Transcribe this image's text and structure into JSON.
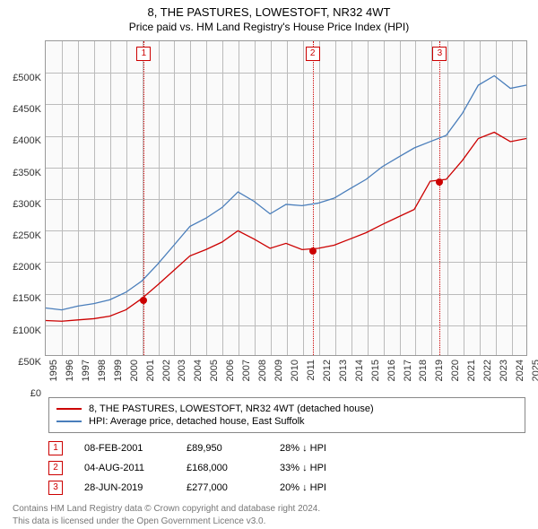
{
  "title": "8, THE PASTURES, LOWESTOFT, NR32 4WT",
  "subtitle": "Price paid vs. HM Land Registry's House Price Index (HPI)",
  "chart": {
    "type": "line",
    "background_color": "#fafafa",
    "grid_color": "#bbbbbb",
    "border_color": "#999999",
    "x_years": [
      1995,
      1996,
      1997,
      1998,
      1999,
      2000,
      2001,
      2002,
      2003,
      2004,
      2005,
      2006,
      2007,
      2008,
      2009,
      2010,
      2011,
      2012,
      2013,
      2014,
      2015,
      2016,
      2017,
      2018,
      2019,
      2020,
      2021,
      2022,
      2023,
      2024,
      2025
    ],
    "y_ticks": [
      0,
      50000,
      100000,
      150000,
      200000,
      250000,
      300000,
      350000,
      400000,
      450000,
      500000
    ],
    "y_tick_labels": [
      "£0",
      "£50K",
      "£100K",
      "£150K",
      "£200K",
      "£250K",
      "£300K",
      "£350K",
      "£400K",
      "£450K",
      "£500K"
    ],
    "ylim": [
      0,
      500000
    ],
    "series": [
      {
        "name": "hpi",
        "color": "#4a7ebb",
        "width": 1.3,
        "data": [
          [
            1995,
            75000
          ],
          [
            1996,
            72000
          ],
          [
            1997,
            78000
          ],
          [
            1998,
            82000
          ],
          [
            1999,
            88000
          ],
          [
            2000,
            100000
          ],
          [
            2001,
            118000
          ],
          [
            2002,
            145000
          ],
          [
            2003,
            175000
          ],
          [
            2004,
            205000
          ],
          [
            2005,
            218000
          ],
          [
            2006,
            235000
          ],
          [
            2007,
            260000
          ],
          [
            2008,
            245000
          ],
          [
            2009,
            225000
          ],
          [
            2010,
            240000
          ],
          [
            2011,
            238000
          ],
          [
            2012,
            242000
          ],
          [
            2013,
            250000
          ],
          [
            2014,
            265000
          ],
          [
            2015,
            280000
          ],
          [
            2016,
            300000
          ],
          [
            2017,
            315000
          ],
          [
            2018,
            330000
          ],
          [
            2019,
            340000
          ],
          [
            2020,
            350000
          ],
          [
            2021,
            385000
          ],
          [
            2022,
            430000
          ],
          [
            2023,
            445000
          ],
          [
            2024,
            425000
          ],
          [
            2025,
            430000
          ]
        ],
        "legend_label": "HPI: Average price, detached house, East Suffolk"
      },
      {
        "name": "property",
        "color": "#cc0000",
        "width": 1.3,
        "data": [
          [
            1995,
            55000
          ],
          [
            1996,
            54000
          ],
          [
            1997,
            56000
          ],
          [
            1998,
            58000
          ],
          [
            1999,
            62000
          ],
          [
            2000,
            72000
          ],
          [
            2001,
            90000
          ],
          [
            2002,
            112000
          ],
          [
            2003,
            135000
          ],
          [
            2004,
            158000
          ],
          [
            2005,
            168000
          ],
          [
            2006,
            180000
          ],
          [
            2007,
            198000
          ],
          [
            2008,
            185000
          ],
          [
            2009,
            170000
          ],
          [
            2010,
            178000
          ],
          [
            2011,
            168000
          ],
          [
            2012,
            170000
          ],
          [
            2013,
            175000
          ],
          [
            2014,
            185000
          ],
          [
            2015,
            195000
          ],
          [
            2016,
            208000
          ],
          [
            2017,
            220000
          ],
          [
            2018,
            232000
          ],
          [
            2019,
            277000
          ],
          [
            2020,
            280000
          ],
          [
            2021,
            310000
          ],
          [
            2022,
            345000
          ],
          [
            2023,
            355000
          ],
          [
            2024,
            340000
          ],
          [
            2025,
            345000
          ]
        ],
        "legend_label": "8, THE PASTURES, LOWESTOFT, NR32 4WT (detached house)"
      }
    ],
    "reference_lines": [
      {
        "n": "1",
        "year": 2001.1,
        "color": "#cc0000"
      },
      {
        "n": "2",
        "year": 2011.6,
        "color": "#cc0000"
      },
      {
        "n": "3",
        "year": 2019.5,
        "color": "#cc0000"
      }
    ],
    "sale_dots": [
      {
        "year": 2001.1,
        "value": 89950,
        "color": "#cc0000"
      },
      {
        "year": 2011.6,
        "value": 168000,
        "color": "#cc0000"
      },
      {
        "year": 2019.5,
        "value": 277000,
        "color": "#cc0000"
      }
    ]
  },
  "sales": [
    {
      "n": "1",
      "date": "08-FEB-2001",
      "price": "£89,950",
      "delta": "28% ↓ HPI"
    },
    {
      "n": "2",
      "date": "04-AUG-2011",
      "price": "£168,000",
      "delta": "33% ↓ HPI"
    },
    {
      "n": "3",
      "date": "28-JUN-2019",
      "price": "£277,000",
      "delta": "20% ↓ HPI"
    }
  ],
  "footer_line1": "Contains HM Land Registry data © Crown copyright and database right 2024.",
  "footer_line2": "This data is licensed under the Open Government Licence v3.0."
}
